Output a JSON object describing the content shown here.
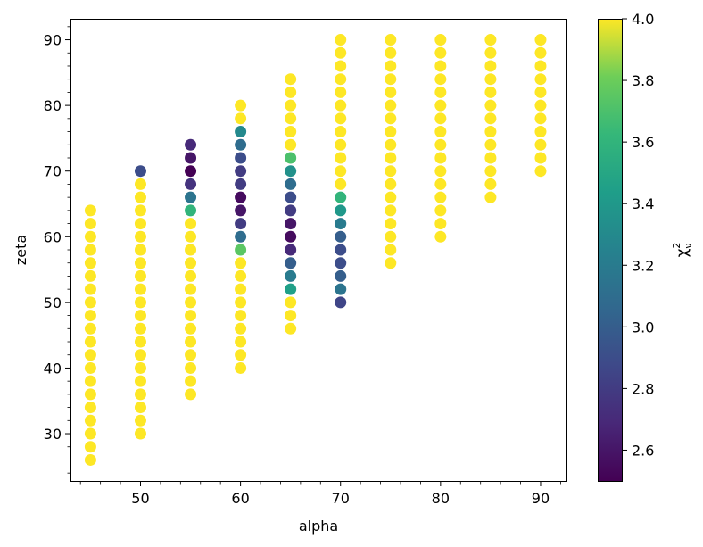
{
  "chart_data": {
    "type": "scatter",
    "xlabel": "alpha",
    "ylabel": "zeta",
    "colorbar_label": "χ²ν",
    "colorbar_label_parts": {
      "base": "χ",
      "sup": "2",
      "sub": "ν"
    },
    "colormap": "viridis",
    "xlim": [
      43,
      92.5
    ],
    "ylim": [
      22.8,
      93.2
    ],
    "clim": [
      2.5,
      4.0
    ],
    "grid": false,
    "x_ticks": [
      50,
      60,
      70,
      80,
      90
    ],
    "x_tick_labels": [
      "50",
      "60",
      "70",
      "80",
      "90"
    ],
    "x_minor_step": 2,
    "y_ticks": [
      30,
      40,
      50,
      60,
      70,
      80,
      90
    ],
    "y_tick_labels": [
      "30",
      "40",
      "50",
      "60",
      "70",
      "80",
      "90"
    ],
    "y_minor_step": 2,
    "colorbar_ticks": [
      2.6,
      2.8,
      3.0,
      3.2,
      3.4,
      3.6,
      3.8,
      4.0
    ],
    "colorbar_tick_labels": [
      "2.6",
      "2.8",
      "3.0",
      "3.2",
      "3.4",
      "3.6",
      "3.8",
      "4.0"
    ],
    "columns": [
      {
        "alpha": 45,
        "zeta_min": 26,
        "zeta_max": 64,
        "zeta_step": 2,
        "default_value": 4.0,
        "values": {}
      },
      {
        "alpha": 50,
        "zeta_min": 30,
        "zeta_max": 70,
        "zeta_step": 2,
        "default_value": 4.0,
        "values": {
          "70": 2.9
        }
      },
      {
        "alpha": 55,
        "zeta_min": 36,
        "zeta_max": 74,
        "zeta_step": 2,
        "default_value": 4.0,
        "values": {
          "64": 3.6,
          "66": 3.15,
          "68": 2.75,
          "70": 2.5,
          "72": 2.6,
          "74": 2.7
        }
      },
      {
        "alpha": 60,
        "zeta_min": 40,
        "zeta_max": 80,
        "zeta_step": 2,
        "default_value": 4.0,
        "values": {
          "58": 3.75,
          "60": 3.1,
          "62": 2.8,
          "64": 2.6,
          "66": 2.55,
          "68": 2.8,
          "70": 2.8,
          "72": 2.9,
          "74": 3.1,
          "76": 3.3
        }
      },
      {
        "alpha": 65,
        "zeta_min": 46,
        "zeta_max": 84,
        "zeta_step": 2,
        "default_value": 4.0,
        "values": {
          "52": 3.45,
          "54": 3.2,
          "56": 3.0,
          "58": 2.7,
          "60": 2.55,
          "62": 2.6,
          "64": 2.8,
          "66": 2.9,
          "68": 3.1,
          "70": 3.35,
          "72": 3.7
        }
      },
      {
        "alpha": 70,
        "zeta_min": 50,
        "zeta_max": 90,
        "zeta_step": 2,
        "default_value": 4.0,
        "values": {
          "50": 2.85,
          "52": 3.15,
          "54": 3.0,
          "56": 2.9,
          "58": 2.9,
          "60": 3.0,
          "62": 3.2,
          "64": 3.4,
          "66": 3.6
        }
      },
      {
        "alpha": 75,
        "zeta_min": 56,
        "zeta_max": 90,
        "zeta_step": 2,
        "default_value": 4.0,
        "values": {}
      },
      {
        "alpha": 80,
        "zeta_min": 60,
        "zeta_max": 90,
        "zeta_step": 2,
        "default_value": 4.0,
        "values": {}
      },
      {
        "alpha": 85,
        "zeta_min": 66,
        "zeta_max": 90,
        "zeta_step": 2,
        "default_value": 4.0,
        "values": {}
      },
      {
        "alpha": 90,
        "zeta_min": 70,
        "zeta_max": 90,
        "zeta_step": 2,
        "default_value": 4.0,
        "values": {}
      }
    ]
  }
}
